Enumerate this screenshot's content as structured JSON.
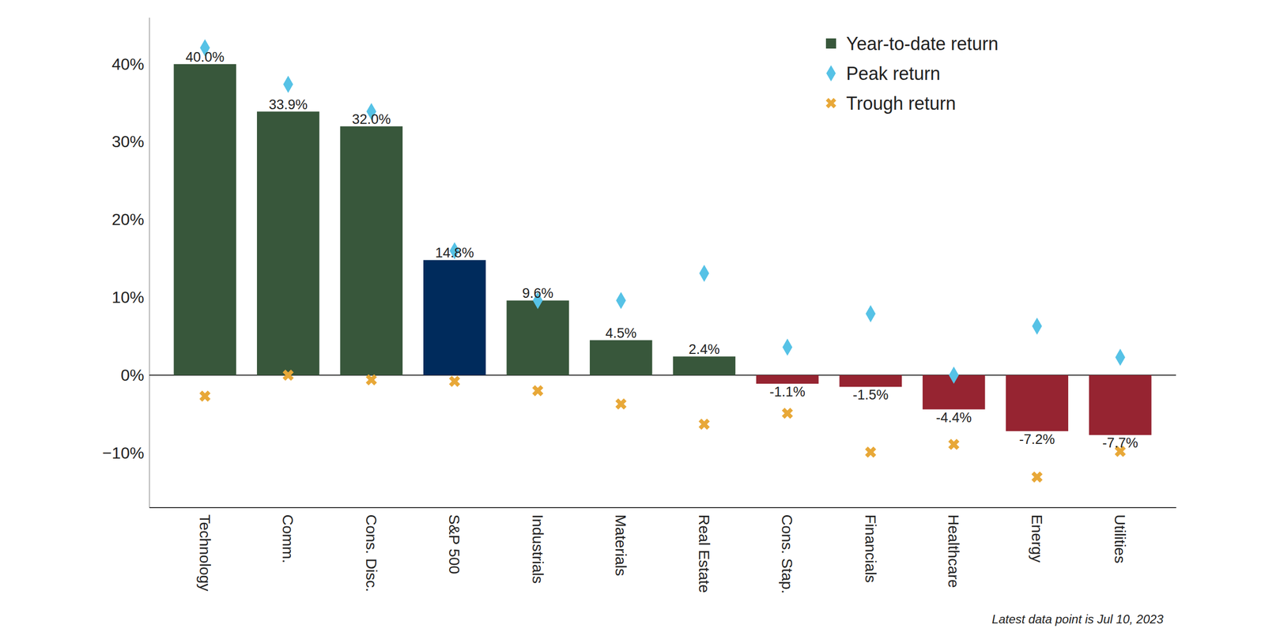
{
  "chart_data": {
    "type": "bar",
    "categories": [
      "Technology",
      "Comm.",
      "Cons. Disc.",
      "S&P 500",
      "Industrials",
      "Materials",
      "Real Estate",
      "Cons. Stap.",
      "Financials",
      "Healthcare",
      "Energy",
      "Utilities"
    ],
    "series": [
      {
        "name": "Year-to-date return",
        "type": "bar",
        "color": "#38573b",
        "colors": [
          "#38573b",
          "#38573b",
          "#38573b",
          "#002b5c",
          "#38573b",
          "#38573b",
          "#38573b",
          "#962431",
          "#962431",
          "#962431",
          "#962431",
          "#962431"
        ],
        "values": [
          40.0,
          33.9,
          32.0,
          14.8,
          9.6,
          4.5,
          2.4,
          -1.1,
          -1.5,
          -4.4,
          -7.2,
          -7.7
        ],
        "value_labels": [
          "40.0%",
          "33.9%",
          "32.0%",
          "14.8%",
          "9.6%",
          "4.5%",
          "2.4%",
          "-1.1%",
          "-1.5%",
          "-4.4%",
          "-7.2%",
          "-7.7%"
        ]
      },
      {
        "name": "Peak return",
        "type": "scatter",
        "marker": "diamond",
        "color": "#56c2e6",
        "values": [
          42.1,
          37.4,
          33.9,
          16.0,
          9.6,
          9.6,
          13.1,
          3.6,
          7.9,
          0.0,
          6.3,
          2.3
        ]
      },
      {
        "name": "Trough return",
        "type": "scatter",
        "marker": "x",
        "color": "#e8a838",
        "values": [
          -2.7,
          0.0,
          -0.6,
          -0.8,
          -2.0,
          -3.7,
          -6.3,
          -4.9,
          -9.9,
          -8.9,
          -13.1,
          -9.8
        ]
      }
    ],
    "ylim": [
      -17,
      46
    ],
    "yticks": [
      {
        "value": -10,
        "label": "−10%"
      },
      {
        "value": 0,
        "label": "0%"
      },
      {
        "value": 10,
        "label": "10%"
      },
      {
        "value": 20,
        "label": "20%"
      },
      {
        "value": 30,
        "label": "30%"
      },
      {
        "value": 40,
        "label": "40%"
      }
    ],
    "grid": false,
    "legend": "upper right",
    "data_labels": true,
    "annotations": [
      "Latest data point is Jul 10, 2023"
    ]
  }
}
